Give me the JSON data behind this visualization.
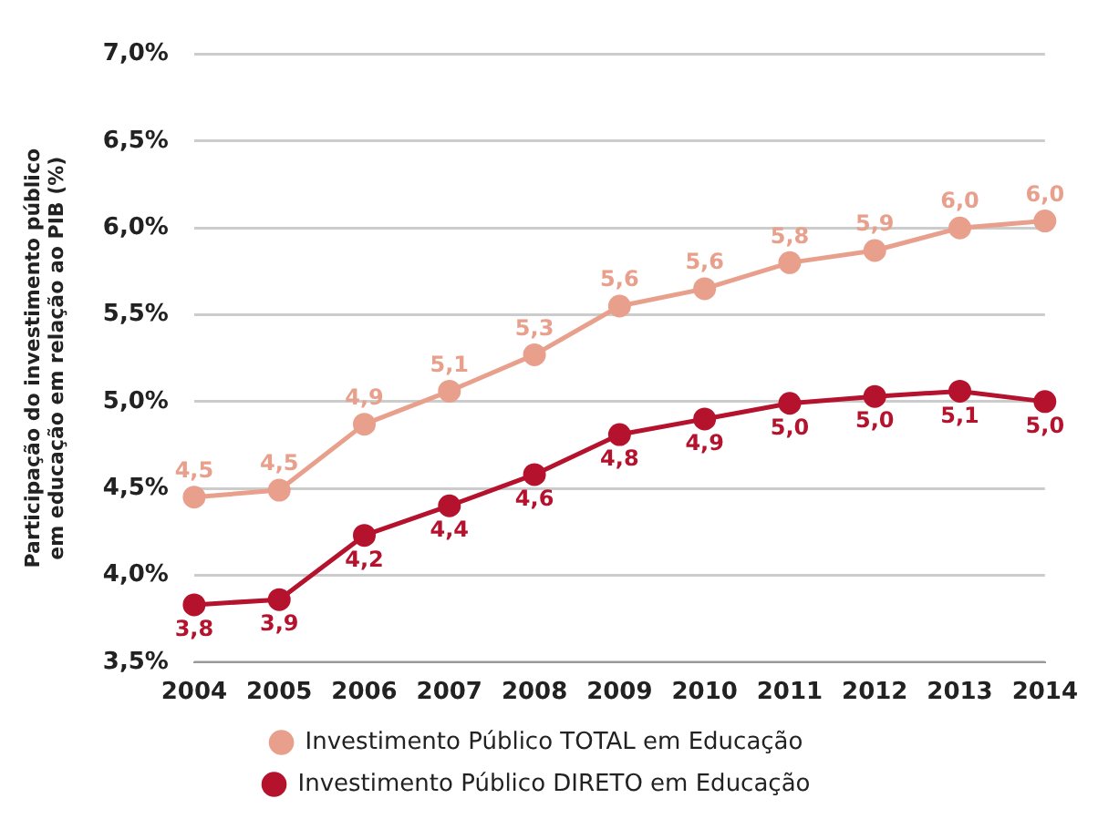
{
  "chart_data": {
    "type": "line",
    "ylabel": "Participação do investimento público em educação em relação ao PIB (%)",
    "categories": [
      "2004",
      "2005",
      "2006",
      "2007",
      "2008",
      "2009",
      "2010",
      "2011",
      "2012",
      "2013",
      "2014"
    ],
    "series": [
      {
        "name": "Investimento Público TOTAL em Educação",
        "color": "#e8a08c",
        "values": [
          4.45,
          4.49,
          4.87,
          5.06,
          5.27,
          5.55,
          5.65,
          5.8,
          5.87,
          6.0,
          6.04
        ],
        "value_labels": [
          "4,5",
          "4,5",
          "4,9",
          "5,1",
          "5,3",
          "5,6",
          "5,6",
          "5,8",
          "5,9",
          "6,0",
          "6,0"
        ]
      },
      {
        "name": "Investimento Público DIRETO em Educação",
        "color": "#b5122e",
        "values": [
          3.83,
          3.86,
          4.23,
          4.4,
          4.58,
          4.81,
          4.9,
          4.99,
          5.03,
          5.06,
          5.0
        ],
        "value_labels": [
          "3,8",
          "3,9",
          "4,2",
          "4,4",
          "4,6",
          "4,8",
          "4,9",
          "5,0",
          "5,0",
          "5,1",
          "5,0"
        ]
      }
    ],
    "ylim": [
      3.5,
      7.0
    ],
    "yticks": [
      {
        "value": 3.5,
        "label": "3,5%"
      },
      {
        "value": 4.0,
        "label": "4,0%"
      },
      {
        "value": 4.5,
        "label": "4,5%"
      },
      {
        "value": 5.0,
        "label": "5,0%"
      },
      {
        "value": 5.5,
        "label": "5,5%"
      },
      {
        "value": 6.0,
        "label": "6,0%"
      },
      {
        "value": 6.5,
        "label": "6,5%"
      },
      {
        "value": 7.0,
        "label": "7,0%"
      }
    ],
    "grid": "y",
    "legend": "bottom",
    "marker": "circle",
    "line_style": "solid"
  }
}
